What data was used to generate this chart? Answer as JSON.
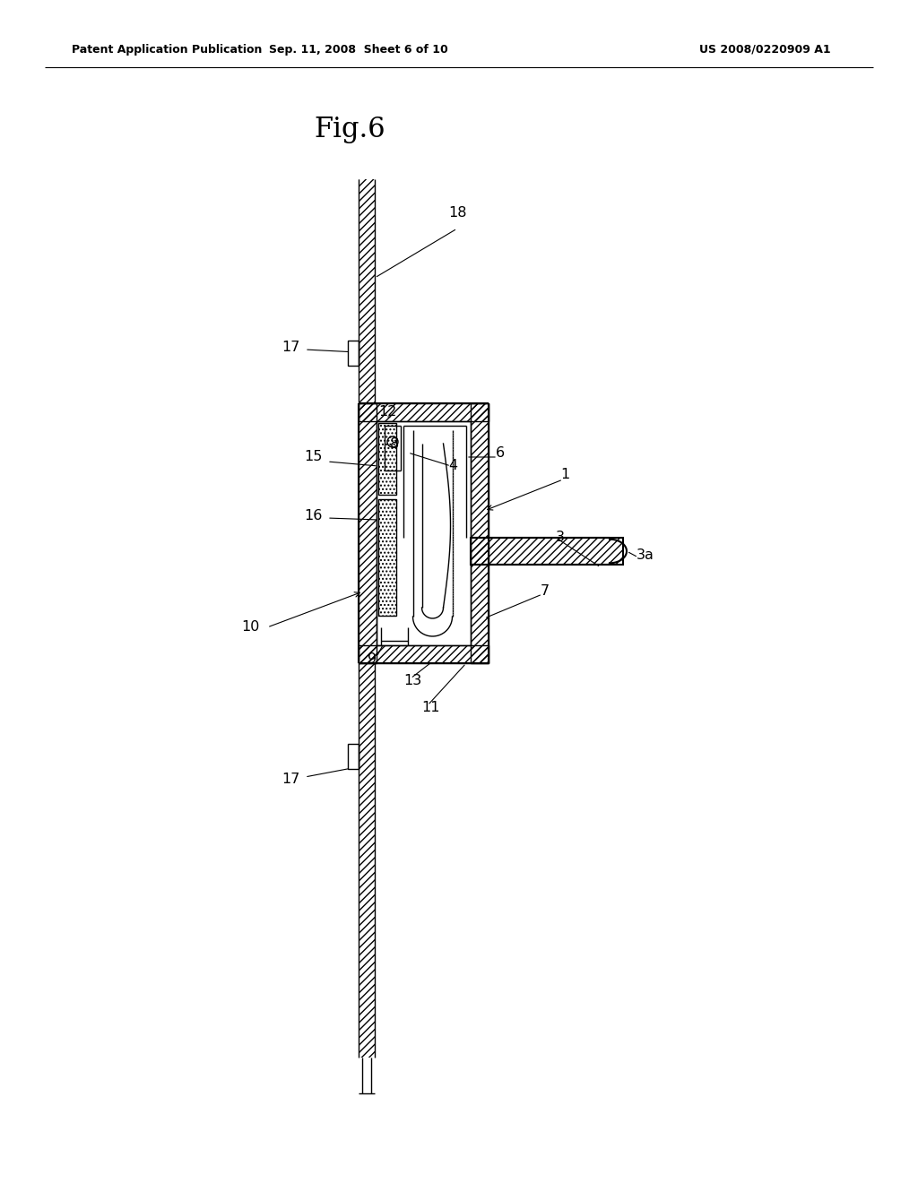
{
  "title": "Fig.6",
  "header_left": "Patent Application Publication",
  "header_mid": "Sep. 11, 2008  Sheet 6 of 10",
  "header_right": "US 2008/0220909 A1",
  "bg_color": "#ffffff",
  "line_color": "#000000"
}
